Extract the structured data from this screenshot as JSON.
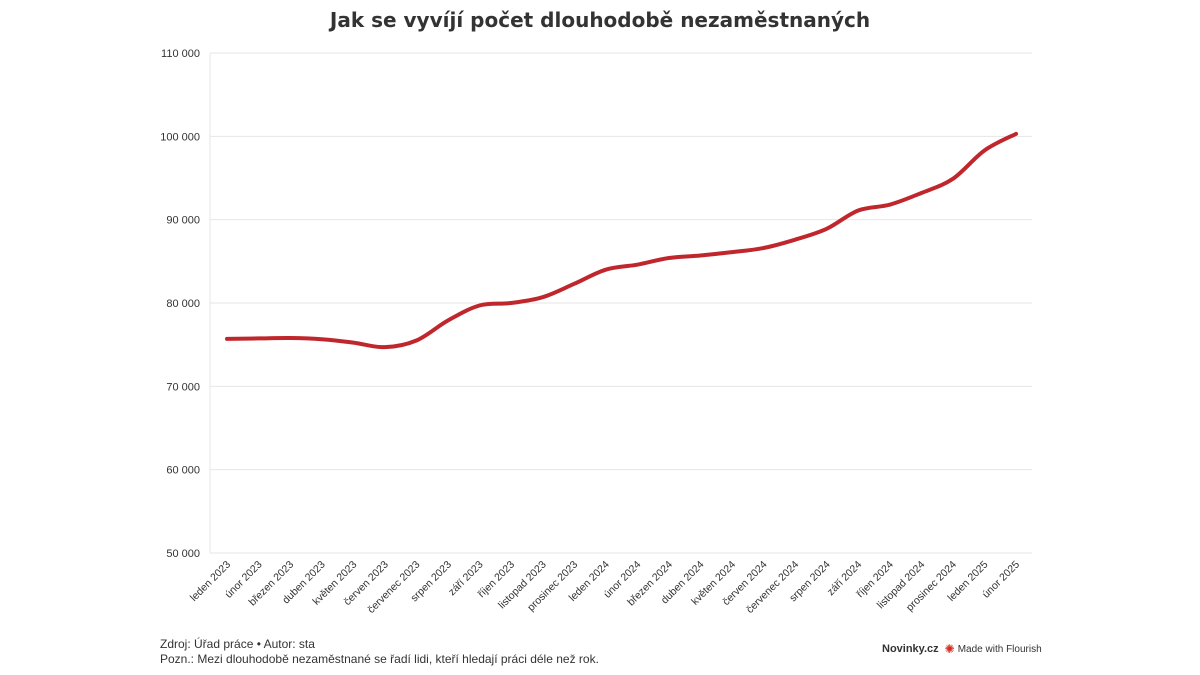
{
  "chart_data": {
    "type": "line",
    "title": "Jak se vyvíjí počet dlouhodobě nezaměstnaných",
    "categories": [
      "leden 2023",
      "únor 2023",
      "březen 2023",
      "duben 2023",
      "květen 2023",
      "červen 2023",
      "červenec 2023",
      "srpen 2023",
      "září 2023",
      "říjen 2023",
      "listopad 2023",
      "prosinec 2023",
      "leden 2024",
      "únor 2024",
      "březen 2024",
      "duben 2024",
      "květen 2024",
      "červen 2024",
      "červenec 2024",
      "srpen 2024",
      "září 2024",
      "říjen 2024",
      "listopad 2024",
      "prosinec 2024",
      "leden 2025",
      "únor 2025"
    ],
    "series": [
      {
        "name": "",
        "color": "#c0272d",
        "values": [
          75700,
          75750,
          75800,
          75650,
          75250,
          74700,
          75500,
          77900,
          79700,
          80000,
          80700,
          82300,
          84000,
          84600,
          85400,
          85700,
          86100,
          86600,
          87600,
          88900,
          91100,
          91800,
          93200,
          94900,
          98300,
          100300
        ]
      }
    ],
    "ylim": [
      50000,
      110000
    ],
    "yticks": [
      50000,
      60000,
      70000,
      80000,
      90000,
      100000,
      110000
    ],
    "ytick_labels": [
      "50 000",
      "60 000",
      "70 000",
      "80 000",
      "90 000",
      "100 000",
      "110 000"
    ],
    "xlabel": "",
    "ylabel": "",
    "grid": true,
    "legend": "none"
  },
  "footer": {
    "source": "Zdroj: Úřad práce • Autor: sta",
    "note": "Pozn.: Mezi dlouhodobě nezaměstnané se řadí lidi, kteří hledají práci déle než rok."
  },
  "brand": {
    "name": "Novinky.cz",
    "flourish": "Made with Flourish",
    "flourish_icon": "flourish-logo-icon"
  }
}
